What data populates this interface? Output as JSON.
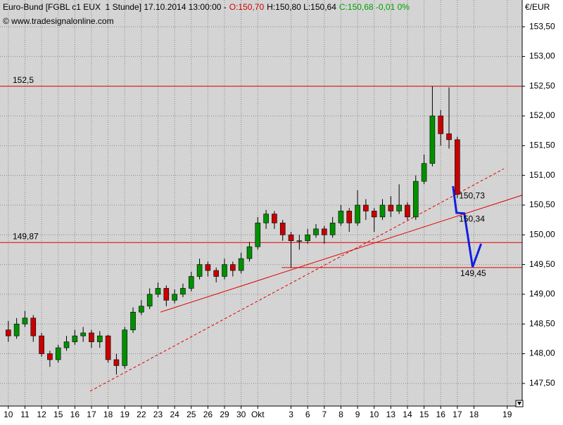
{
  "chart_data": {
    "type": "candlestick",
    "title": "Euro-Bund [FGBL c1 EUX  1 Stunde] 17.10.2014 13:00:00 -",
    "quote": {
      "open_label": "O:150,70",
      "hl_label": "H:150,80 L:150,64",
      "close_label": "C:150,68 -0,01 0%"
    },
    "source": "© www.tradesignalonline.com",
    "y_unit": "€/EUR",
    "up_color": "#009000",
    "down_color": "#c80000",
    "grid": true,
    "xlim": [
      -0.5,
      30.9
    ],
    "ylim": [
      147.12,
      153.95
    ],
    "yticks": [
      {
        "value": 147.5,
        "label": "147,50"
      },
      {
        "value": 148,
        "label": "148,00"
      },
      {
        "value": 148.5,
        "label": "148,50"
      },
      {
        "value": 149,
        "label": "149,00"
      },
      {
        "value": 149.5,
        "label": "149,50"
      },
      {
        "value": 150,
        "label": "150,00"
      },
      {
        "value": 150.5,
        "label": "150,50"
      },
      {
        "value": 151,
        "label": "151,00"
      },
      {
        "value": 151.5,
        "label": "151,50"
      },
      {
        "value": 152,
        "label": "152,00"
      },
      {
        "value": 152.5,
        "label": "152,50"
      },
      {
        "value": 153,
        "label": "153,00"
      },
      {
        "value": 153.5,
        "label": "153,50"
      }
    ],
    "xticks": [
      {
        "value": 0,
        "label": "10"
      },
      {
        "value": 1,
        "label": "11"
      },
      {
        "value": 2,
        "label": "12"
      },
      {
        "value": 3,
        "label": "15"
      },
      {
        "value": 4,
        "label": "16"
      },
      {
        "value": 5,
        "label": "17"
      },
      {
        "value": 6,
        "label": "18"
      },
      {
        "value": 7,
        "label": "19"
      },
      {
        "value": 8,
        "label": "22"
      },
      {
        "value": 9,
        "label": "23"
      },
      {
        "value": 10,
        "label": "24"
      },
      {
        "value": 11,
        "label": "25"
      },
      {
        "value": 12,
        "label": "26"
      },
      {
        "value": 13,
        "label": "29"
      },
      {
        "value": 14,
        "label": "30"
      },
      {
        "value": 15,
        "label": "Okt"
      },
      {
        "value": 17,
        "label": "3"
      },
      {
        "value": 18,
        "label": "6"
      },
      {
        "value": 19,
        "label": "7"
      },
      {
        "value": 20,
        "label": "8"
      },
      {
        "value": 21,
        "label": "9"
      },
      {
        "value": 22,
        "label": "10"
      },
      {
        "value": 23,
        "label": "13"
      },
      {
        "value": 24,
        "label": "14"
      },
      {
        "value": 25,
        "label": "15"
      },
      {
        "value": 26,
        "label": "16"
      },
      {
        "value": 27,
        "label": "17"
      },
      {
        "value": 28,
        "label": "18"
      },
      {
        "value": 30,
        "label": "19"
      }
    ],
    "x": [
      0,
      0.5,
      1,
      1.5,
      2,
      2.5,
      3,
      3.5,
      4,
      4.5,
      5,
      5.5,
      6,
      6.5,
      7,
      7.5,
      8,
      8.5,
      9,
      9.5,
      10,
      10.5,
      11,
      11.5,
      12,
      12.5,
      13,
      13.5,
      14,
      14.5,
      15,
      15.5,
      16,
      16.5,
      17,
      17.5,
      18,
      18.5,
      19,
      19.5,
      20,
      20.5,
      21,
      21.5,
      22,
      22.5,
      23,
      23.5,
      24,
      24.5,
      25,
      25.5,
      26,
      26.5,
      27
    ],
    "open": [
      148.4,
      148.3,
      148.5,
      148.6,
      148.3,
      148.0,
      147.9,
      148.1,
      148.2,
      148.3,
      148.35,
      148.2,
      148.3,
      147.9,
      147.8,
      148.4,
      148.7,
      148.8,
      149.0,
      149.1,
      148.9,
      149.0,
      149.1,
      149.3,
      149.5,
      149.4,
      149.3,
      149.5,
      149.4,
      149.6,
      149.8,
      150.2,
      150.35,
      150.2,
      150.0,
      149.9,
      149.9,
      150.0,
      150.1,
      150.0,
      150.2,
      150.4,
      150.2,
      150.5,
      150.4,
      150.3,
      150.5,
      150.4,
      150.5,
      150.3,
      150.9,
      151.2,
      152.0,
      151.7,
      151.6
    ],
    "high": [
      148.55,
      148.6,
      148.72,
      148.65,
      148.35,
      148.05,
      148.15,
      148.3,
      148.4,
      148.45,
      148.4,
      148.38,
      148.32,
      148.0,
      148.45,
      148.78,
      148.9,
      149.1,
      149.2,
      149.15,
      149.08,
      149.18,
      149.38,
      149.6,
      149.55,
      149.45,
      149.6,
      149.55,
      149.7,
      149.88,
      150.3,
      150.42,
      150.4,
      150.25,
      150.05,
      150.0,
      150.1,
      150.18,
      150.15,
      150.3,
      150.5,
      150.45,
      150.75,
      150.6,
      150.45,
      150.6,
      150.65,
      150.85,
      150.55,
      151.0,
      151.35,
      152.5,
      152.1,
      152.48,
      151.65
    ],
    "low": [
      148.2,
      148.25,
      148.45,
      148.2,
      147.95,
      147.78,
      147.85,
      148.05,
      148.15,
      148.2,
      148.1,
      148.1,
      147.85,
      147.65,
      147.75,
      148.35,
      148.65,
      148.75,
      148.95,
      148.8,
      148.85,
      148.95,
      149.05,
      149.25,
      149.3,
      149.2,
      149.25,
      149.3,
      149.35,
      149.55,
      149.75,
      150.1,
      150.1,
      149.9,
      149.45,
      149.75,
      149.85,
      149.95,
      149.85,
      149.95,
      150.15,
      150.05,
      150.15,
      150.25,
      150.05,
      150.25,
      150.3,
      150.35,
      150.25,
      150.25,
      150.85,
      151.15,
      151.5,
      151.45,
      150.62
    ],
    "close": [
      148.3,
      148.5,
      148.6,
      148.3,
      148.0,
      147.9,
      148.1,
      148.2,
      148.3,
      148.35,
      148.2,
      148.3,
      147.9,
      147.8,
      148.4,
      148.7,
      148.8,
      149.0,
      149.1,
      148.9,
      149.0,
      149.1,
      149.3,
      149.5,
      149.4,
      149.3,
      149.5,
      149.4,
      149.6,
      149.8,
      150.2,
      150.35,
      150.2,
      150.0,
      149.9,
      149.9,
      150.0,
      150.1,
      150.0,
      150.2,
      150.4,
      150.2,
      150.5,
      150.4,
      150.3,
      150.5,
      150.4,
      150.5,
      150.3,
      150.9,
      151.2,
      152.0,
      151.7,
      151.6,
      150.68
    ],
    "levels": [
      {
        "value": 152.5,
        "label": "152,5"
      },
      {
        "value": 149.87,
        "label": "149,87"
      },
      {
        "value": 149.45,
        "label": "149,45",
        "x_start": 16.44
      }
    ],
    "trendlines": [
      {
        "x": [
          9.15,
          30.93
        ],
        "values": [
          148.7,
          150.67
        ],
        "style": "solid"
      },
      {
        "x": [
          4.92,
          29.79
        ],
        "values": [
          147.37,
          151.11
        ],
        "style": "dashed"
      }
    ],
    "forecast": {
      "color": "#1020e0",
      "x": [
        26.74,
        26.95,
        27.42,
        27.92,
        28.43
      ],
      "values": [
        150.82,
        150.37,
        150.36,
        149.46,
        149.85
      ]
    },
    "forecast_labels": [
      {
        "x": 27.1,
        "value": 150.73,
        "label": "150,73"
      },
      {
        "x": 27.1,
        "value": 150.34,
        "label": "150,34"
      }
    ]
  }
}
